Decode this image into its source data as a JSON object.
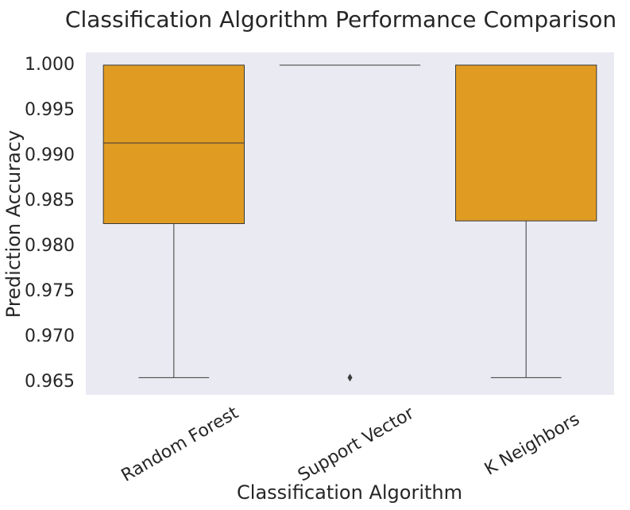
{
  "chart_data": {
    "type": "box",
    "title": "Classification Algorithm Performance Comparison",
    "xlabel": "Classification Algorithm",
    "ylabel": "Prediction Accuracy",
    "categories": [
      "Random Forest",
      "Support Vector",
      "K Neighbors"
    ],
    "yticks": [
      "0.965",
      "0.970",
      "0.975",
      "0.980",
      "0.985",
      "0.990",
      "0.995",
      "1.000"
    ],
    "ylim": [
      0.9636,
      1.0014
    ],
    "grid": false,
    "box_color": "#e09c22",
    "edge_color": "#3a3a3a",
    "background_color": "#eaeaf2",
    "boxes": [
      {
        "category": "Random Forest",
        "whisker_low": 0.9655,
        "q1": 0.9825,
        "median": 0.9914,
        "q3": 1.0,
        "whisker_high": 1.0,
        "outliers": []
      },
      {
        "category": "Support Vector",
        "whisker_low": 1.0,
        "q1": 1.0,
        "median": 1.0,
        "q3": 1.0,
        "whisker_high": 1.0,
        "outliers": [
          0.9655
        ]
      },
      {
        "category": "K Neighbors",
        "whisker_low": 0.9655,
        "q1": 0.9828,
        "median": 1.0,
        "q3": 1.0,
        "whisker_high": 1.0,
        "outliers": []
      }
    ]
  }
}
